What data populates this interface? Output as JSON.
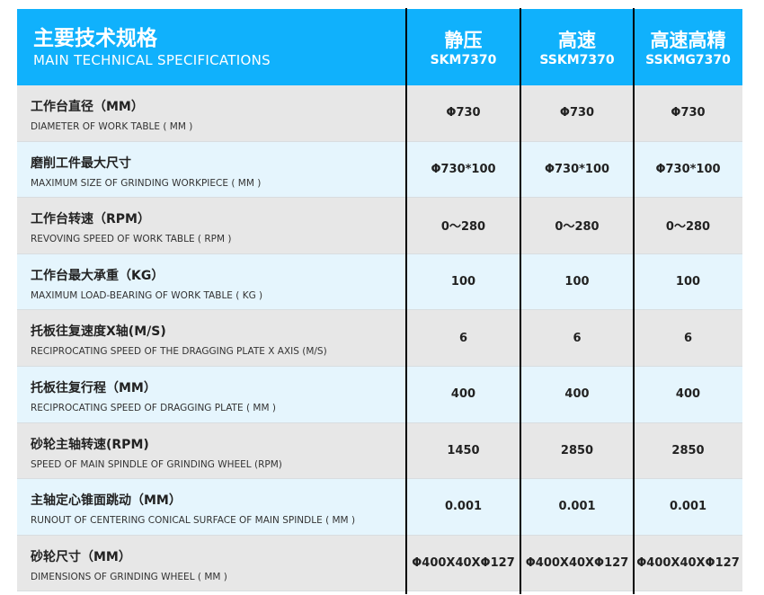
{
  "header": {
    "title_zh": "主要技术规格",
    "title_en": "MAIN TECHNICAL SPECIFICATIONS",
    "models": [
      {
        "name": "静压",
        "code": "SKM7370"
      },
      {
        "name": "高速",
        "code": "SSKM7370"
      },
      {
        "name": "高速高精",
        "code": "SSKMG7370"
      }
    ]
  },
  "colors": {
    "header": "#10b1fc",
    "row_gray": "#e7e7e7",
    "row_blue": "#e5f5fd"
  },
  "rows": [
    {
      "zh": "工作台直径（MM）",
      "en": "DIAMETER OF WORK TABLE ( MM )",
      "values": [
        "Φ730",
        "Φ730",
        "Φ730"
      ]
    },
    {
      "zh": "磨削工件最大尺寸",
      "en": "MAXIMUM SIZE OF GRINDING WORKPIECE ( MM )",
      "values": [
        "Φ730*100",
        "Φ730*100",
        "Φ730*100"
      ]
    },
    {
      "zh": "工作台转速（RPM）",
      "en": "REVOVING SPEED OF WORK TABLE  ( RPM )",
      "values": [
        "0～280",
        "0～280",
        "0～280"
      ]
    },
    {
      "zh": "工作台最大承重（KG）",
      "en": "MAXIMUM  LOAD-BEARING OF WORK TABLE ( KG )",
      "values": [
        "100",
        "100",
        "100"
      ]
    },
    {
      "zh": "托板往复速度X轴(M/S)",
      "en": "RECIPROCATING SPEED OF THE  DRAGGING PLATE X AXIS (M/S)",
      "values": [
        "6",
        "6",
        "6"
      ]
    },
    {
      "zh": "托板往复行程（MM）",
      "en": "RECIPROCATING SPEED OF   DRAGGING PLATE  ( MM )",
      "values": [
        "400",
        "400",
        "400"
      ]
    },
    {
      "zh": "砂轮主轴转速(RPM)",
      "en": "SPEED OF MAIN SPINDLE OF GRINDING WHEEL (RPM)",
      "values": [
        "1450",
        "2850",
        "2850"
      ]
    },
    {
      "zh": "主轴定心锥面跳动（MM）",
      "en": "RUNOUT OF CENTERING CONICAL SURFACE OF MAIN SPINDLE ( MM )",
      "values": [
        "0.001",
        "0.001",
        "0.001"
      ]
    },
    {
      "zh": "砂轮尺寸（MM）",
      "en": "DIMENSIONS OF GRINDING WHEEL ( MM )",
      "values": [
        "Φ400X40XΦ127",
        "Φ400X40XΦ127",
        "Φ400X40XΦ127"
      ]
    }
  ]
}
